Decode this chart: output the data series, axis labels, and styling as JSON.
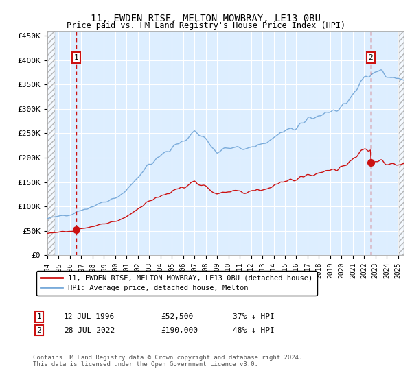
{
  "title": "11, EWDEN RISE, MELTON MOWBRAY, LE13 0BU",
  "subtitle": "Price paid vs. HM Land Registry's House Price Index (HPI)",
  "xlim_start": 1994.0,
  "xlim_end": 2025.5,
  "ylim": [
    0,
    460000
  ],
  "yticks": [
    0,
    50000,
    100000,
    150000,
    200000,
    250000,
    300000,
    350000,
    400000,
    450000
  ],
  "ytick_labels": [
    "£0",
    "£50K",
    "£100K",
    "£150K",
    "£200K",
    "£250K",
    "£300K",
    "£350K",
    "£400K",
    "£450K"
  ],
  "xticks": [
    1994,
    1995,
    1996,
    1997,
    1998,
    1999,
    2000,
    2001,
    2002,
    2003,
    2004,
    2005,
    2006,
    2007,
    2008,
    2009,
    2010,
    2011,
    2012,
    2013,
    2014,
    2015,
    2016,
    2017,
    2018,
    2019,
    2020,
    2021,
    2022,
    2023,
    2024,
    2025
  ],
  "hpi_color": "#7aabda",
  "price_color": "#cc1111",
  "dashed_line_color": "#cc1111",
  "background_plot": "#ddeeff",
  "grid_color": "#ffffff",
  "purchase1_x": 1996.54,
  "purchase1_y": 52500,
  "purchase1_label": "1",
  "purchase1_date": "12-JUL-1996",
  "purchase1_price": "£52,500",
  "purchase1_hpi_diff": "37% ↓ HPI",
  "purchase2_x": 2022.57,
  "purchase2_y": 190000,
  "purchase2_label": "2",
  "purchase2_date": "28-JUL-2022",
  "purchase2_price": "£190,000",
  "purchase2_hpi_diff": "48% ↓ HPI",
  "legend_label1": "11, EWDEN RISE, MELTON MOWBRAY, LE13 0BU (detached house)",
  "legend_label2": "HPI: Average price, detached house, Melton",
  "footnote": "Contains HM Land Registry data © Crown copyright and database right 2024.\nThis data is licensed under the Open Government Licence v3.0."
}
